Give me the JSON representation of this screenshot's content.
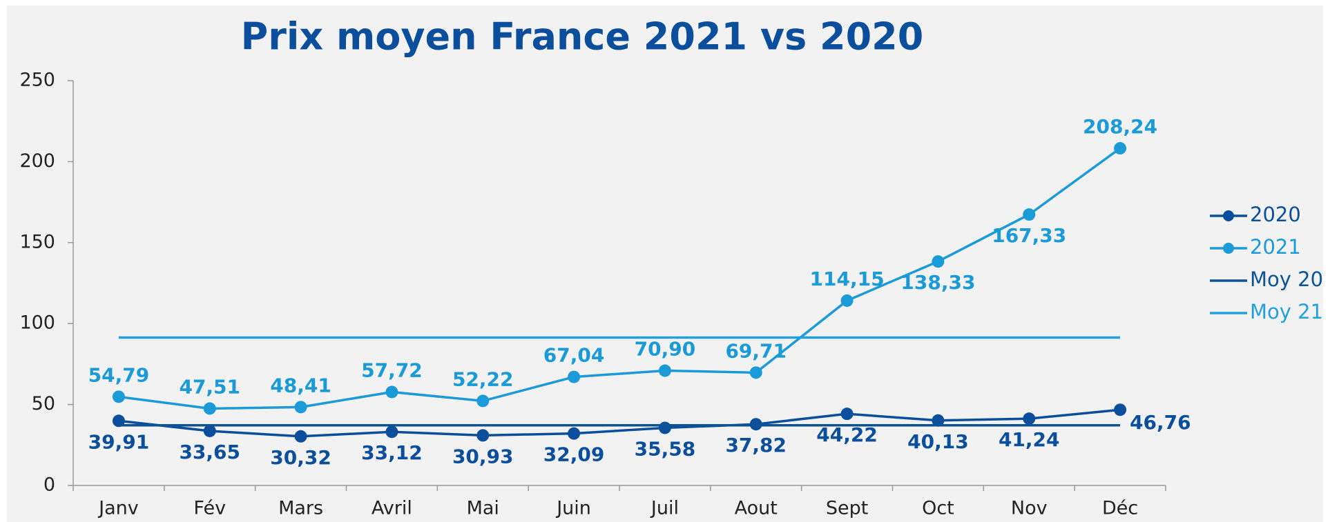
{
  "chart_data": {
    "type": "line",
    "title": "Prix moyen France 2021 vs 2020",
    "categories": [
      "Janv",
      "Fév",
      "Mars",
      "Avril",
      "Mai",
      "Juin",
      "Juil",
      "Aout",
      "Sept",
      "Oct",
      "Nov",
      "Déc"
    ],
    "series": [
      {
        "name": "2020",
        "color": "#0b4f9c",
        "marker": true,
        "values": [
          39.91,
          33.65,
          30.32,
          33.12,
          30.93,
          32.09,
          35.58,
          37.82,
          44.22,
          40.13,
          41.24,
          46.76
        ],
        "value_labels": [
          "39,91",
          "33,65",
          "30,32",
          "33,12",
          "30,93",
          "32,09",
          "35,58",
          "37,82",
          "44,22",
          "40,13",
          "41,24",
          "46,76"
        ]
      },
      {
        "name": "2021",
        "color": "#1a9ad6",
        "marker": true,
        "values": [
          54.79,
          47.51,
          48.41,
          57.72,
          52.22,
          67.04,
          70.9,
          69.71,
          114.15,
          138.33,
          167.33,
          208.24
        ],
        "value_labels": [
          "54,79",
          "47,51",
          "48,41",
          "57,72",
          "52,22",
          "67,04",
          "70,90",
          "69,71",
          "114,15",
          "138,33",
          "167,33",
          "208,24"
        ]
      },
      {
        "name": "Moy 20",
        "color": "#0b5394",
        "marker": false,
        "values": [
          37.15,
          37.15,
          37.15,
          37.15,
          37.15,
          37.15,
          37.15,
          37.15,
          37.15,
          37.15,
          37.15,
          37.15
        ]
      },
      {
        "name": "Moy 21",
        "color": "#22a0dc",
        "marker": false,
        "values": [
          91.36,
          91.36,
          91.36,
          91.36,
          91.36,
          91.36,
          91.36,
          91.36,
          91.36,
          91.36,
          91.36,
          91.36
        ]
      }
    ],
    "ylim": [
      0,
      250
    ],
    "yticks": [
      0,
      50,
      100,
      150,
      200,
      250
    ],
    "legend": "right"
  }
}
